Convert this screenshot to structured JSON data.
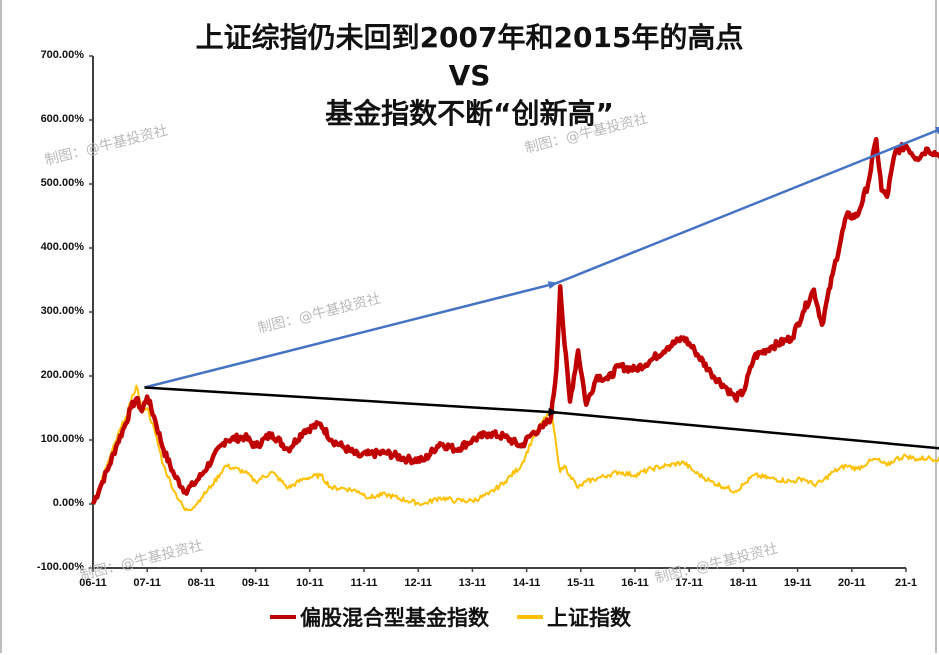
{
  "chart_data": {
    "type": "line",
    "title": [
      "上证综指仍未回到2007年和2015年的高点",
      "VS",
      "基金指数不断“创新高”"
    ],
    "xlabel": "",
    "ylabel": "",
    "ylim": [
      -100,
      700
    ],
    "y_ticks": [
      "700.00%",
      "600.00%",
      "500.00%",
      "400.00%",
      "300.00%",
      "200.00%",
      "100.00%",
      "0.00%",
      "-100.00%"
    ],
    "y_tick_values": [
      700,
      600,
      500,
      400,
      300,
      200,
      100,
      0,
      -100
    ],
    "x_ticks": [
      "06-11",
      "07-11",
      "08-11",
      "09-11",
      "10-11",
      "11-11",
      "12-11",
      "13-11",
      "14-11",
      "15-11",
      "16-11",
      "17-11",
      "18-11",
      "19-11",
      "20-11",
      "21-1"
    ],
    "grid": false,
    "legend_position": "bottom",
    "series": [
      {
        "name": "偏股混合型基金指数",
        "color": "#c00000",
        "x": [
          0,
          0.15,
          0.3,
          0.45,
          0.6,
          0.7,
          0.8,
          0.9,
          1.0,
          1.15,
          1.3,
          1.5,
          1.7,
          1.85,
          2.0,
          2.2,
          2.45,
          2.8,
          3.0,
          3.3,
          3.6,
          3.9,
          4.2,
          4.4,
          4.6,
          4.9,
          5.1,
          5.4,
          5.8,
          6.1,
          6.4,
          6.7,
          7.0,
          7.3,
          7.6,
          7.9,
          8.1,
          8.3,
          8.45,
          8.55,
          8.62,
          8.7,
          8.8,
          8.95,
          9.1,
          9.3,
          9.5,
          9.7,
          10.0,
          10.3,
          10.6,
          10.9,
          11.1,
          11.4,
          11.7,
          11.85,
          12.0,
          12.2,
          12.5,
          12.9,
          13.1,
          13.3,
          13.45,
          13.65,
          13.9,
          14.1,
          14.3,
          14.45,
          14.55,
          14.65,
          14.8,
          15.0,
          15.2,
          15.4,
          15.6,
          15.75,
          15.85,
          15.95,
          16.0
        ],
        "values": [
          0,
          30,
          60,
          95,
          125,
          150,
          165,
          145,
          168,
          130,
          85,
          45,
          20,
          30,
          45,
          70,
          100,
          105,
          90,
          110,
          85,
          115,
          125,
          100,
          90,
          75,
          78,
          80,
          70,
          68,
          95,
          85,
          100,
          110,
          105,
          90,
          110,
          120,
          135,
          210,
          340,
          250,
          160,
          240,
          155,
          200,
          195,
          215,
          210,
          225,
          245,
          260,
          240,
          205,
          180,
          165,
          175,
          230,
          245,
          260,
          300,
          335,
          280,
          360,
          450,
          450,
          500,
          570,
          490,
          480,
          550,
          560,
          540,
          555,
          545,
          560,
          535,
          555,
          560
        ]
      },
      {
        "name": "上证指数",
        "color": "#ffc000",
        "x": [
          0,
          0.15,
          0.3,
          0.45,
          0.6,
          0.7,
          0.8,
          0.9,
          1.0,
          1.15,
          1.3,
          1.5,
          1.7,
          1.85,
          2.0,
          2.2,
          2.45,
          2.8,
          3.0,
          3.3,
          3.6,
          3.9,
          4.2,
          4.4,
          4.6,
          4.9,
          5.1,
          5.4,
          5.8,
          6.1,
          6.4,
          6.7,
          7.0,
          7.3,
          7.6,
          7.9,
          8.1,
          8.3,
          8.45,
          8.55,
          8.62,
          8.7,
          8.8,
          8.95,
          9.1,
          9.3,
          9.5,
          9.7,
          10.0,
          10.3,
          10.6,
          10.9,
          11.1,
          11.4,
          11.7,
          11.85,
          12.0,
          12.2,
          12.5,
          12.9,
          13.1,
          13.3,
          13.45,
          13.65,
          13.9,
          14.1,
          14.3,
          14.45,
          14.55,
          14.65,
          14.8,
          15.0,
          15.2,
          15.4,
          15.6,
          15.75,
          15.85,
          15.95,
          16.0
        ],
        "values": [
          0,
          35,
          70,
          105,
          135,
          160,
          185,
          150,
          150,
          110,
          60,
          20,
          -10,
          -5,
          10,
          30,
          60,
          50,
          35,
          50,
          25,
          40,
          45,
          25,
          25,
          20,
          10,
          15,
          5,
          0,
          10,
          5,
          5,
          15,
          35,
          60,
          100,
          130,
          145,
          90,
          50,
          60,
          45,
          25,
          35,
          40,
          45,
          50,
          45,
          55,
          60,
          65,
          50,
          35,
          25,
          20,
          30,
          45,
          40,
          35,
          40,
          30,
          35,
          50,
          60,
          55,
          65,
          70,
          65,
          60,
          70,
          75,
          70,
          72,
          70,
          75,
          70,
          72,
          70
        ]
      }
    ],
    "annotations": [
      {
        "type": "arrow",
        "color": "#4472c4",
        "from": [
          0.95,
          182
        ],
        "to": [
          8.55,
          345
        ],
        "label": ""
      },
      {
        "type": "arrow",
        "color": "#4472c4",
        "from": [
          8.55,
          345
        ],
        "to": [
          15.7,
          588
        ],
        "label": ""
      },
      {
        "type": "arrow",
        "color": "#000000",
        "from": [
          0.95,
          182
        ],
        "to": [
          8.55,
          143
        ],
        "label": ""
      },
      {
        "type": "arrow",
        "color": "#000000",
        "from": [
          8.55,
          143
        ],
        "to": [
          16.0,
          84
        ],
        "label": ""
      }
    ]
  },
  "watermarks": [
    "制图：@牛基投资社",
    "制图：@牛基投资社",
    "制图：@牛基投资社",
    "制图：@牛基投资社",
    "制图：@牛基投资社"
  ],
  "legend": [
    {
      "label": "偏股混合型基金指数",
      "color": "#c00000"
    },
    {
      "label": "上证指数",
      "color": "#ffc000"
    }
  ]
}
